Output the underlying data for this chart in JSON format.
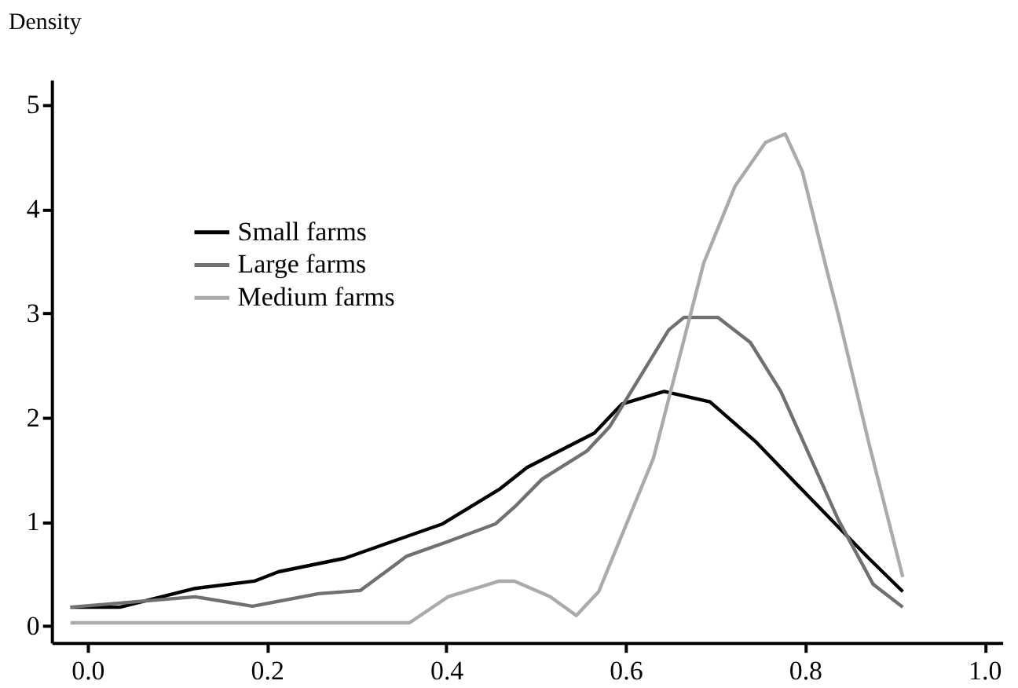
{
  "chart_data": {
    "type": "line",
    "ylabel": "Density",
    "xlim": [
      -0.04,
      1.02
    ],
    "ylim": [
      -0.16,
      5.24
    ],
    "xticks": [
      {
        "value": 0,
        "label": "0.0"
      },
      0.2,
      0.4,
      0.6,
      0.8,
      {
        "value": 1,
        "label": "1.0"
      }
    ],
    "yticks": [
      0,
      1,
      2,
      3,
      4,
      5
    ],
    "grid": false,
    "legend": "top left",
    "marker": "none",
    "line_style": "solid",
    "series": [
      {
        "name": "Small farms",
        "color": "#000000",
        "x": [
          -0.019,
          0.036,
          0.12,
          0.186,
          0.213,
          0.287,
          0.396,
          0.459,
          0.49,
          0.565,
          0.596,
          0.643,
          0.694,
          0.746,
          0.802,
          0.871,
          0.909
        ],
        "values": [
          0.18,
          0.18,
          0.36,
          0.43,
          0.52,
          0.65,
          0.98,
          1.31,
          1.52,
          1.85,
          2.13,
          2.25,
          2.15,
          1.76,
          1.26,
          0.65,
          0.33
        ]
      },
      {
        "name": "Large farms",
        "color": "#707070",
        "x": [
          -0.019,
          0.12,
          0.184,
          0.258,
          0.304,
          0.356,
          0.402,
          0.455,
          0.476,
          0.507,
          0.557,
          0.582,
          0.648,
          0.665,
          0.703,
          0.739,
          0.773,
          0.837,
          0.876,
          0.909
        ],
        "values": [
          0.18,
          0.28,
          0.19,
          0.31,
          0.34,
          0.67,
          0.81,
          0.98,
          1.14,
          1.41,
          1.68,
          1.91,
          2.84,
          2.96,
          2.96,
          2.72,
          2.25,
          1.02,
          0.4,
          0.18
        ]
      },
      {
        "name": "Medium farms",
        "color": "#aaaaaa",
        "x": [
          -0.019,
          0.359,
          0.402,
          0.459,
          0.476,
          0.516,
          0.545,
          0.57,
          0.631,
          0.687,
          0.722,
          0.756,
          0.778,
          0.797,
          0.825,
          0.837,
          0.871,
          0.909
        ],
        "values": [
          0.03,
          0.03,
          0.28,
          0.43,
          0.43,
          0.28,
          0.1,
          0.33,
          1.61,
          3.48,
          4.22,
          4.64,
          4.72,
          4.36,
          3.39,
          2.99,
          1.76,
          0.47
        ]
      }
    ]
  }
}
